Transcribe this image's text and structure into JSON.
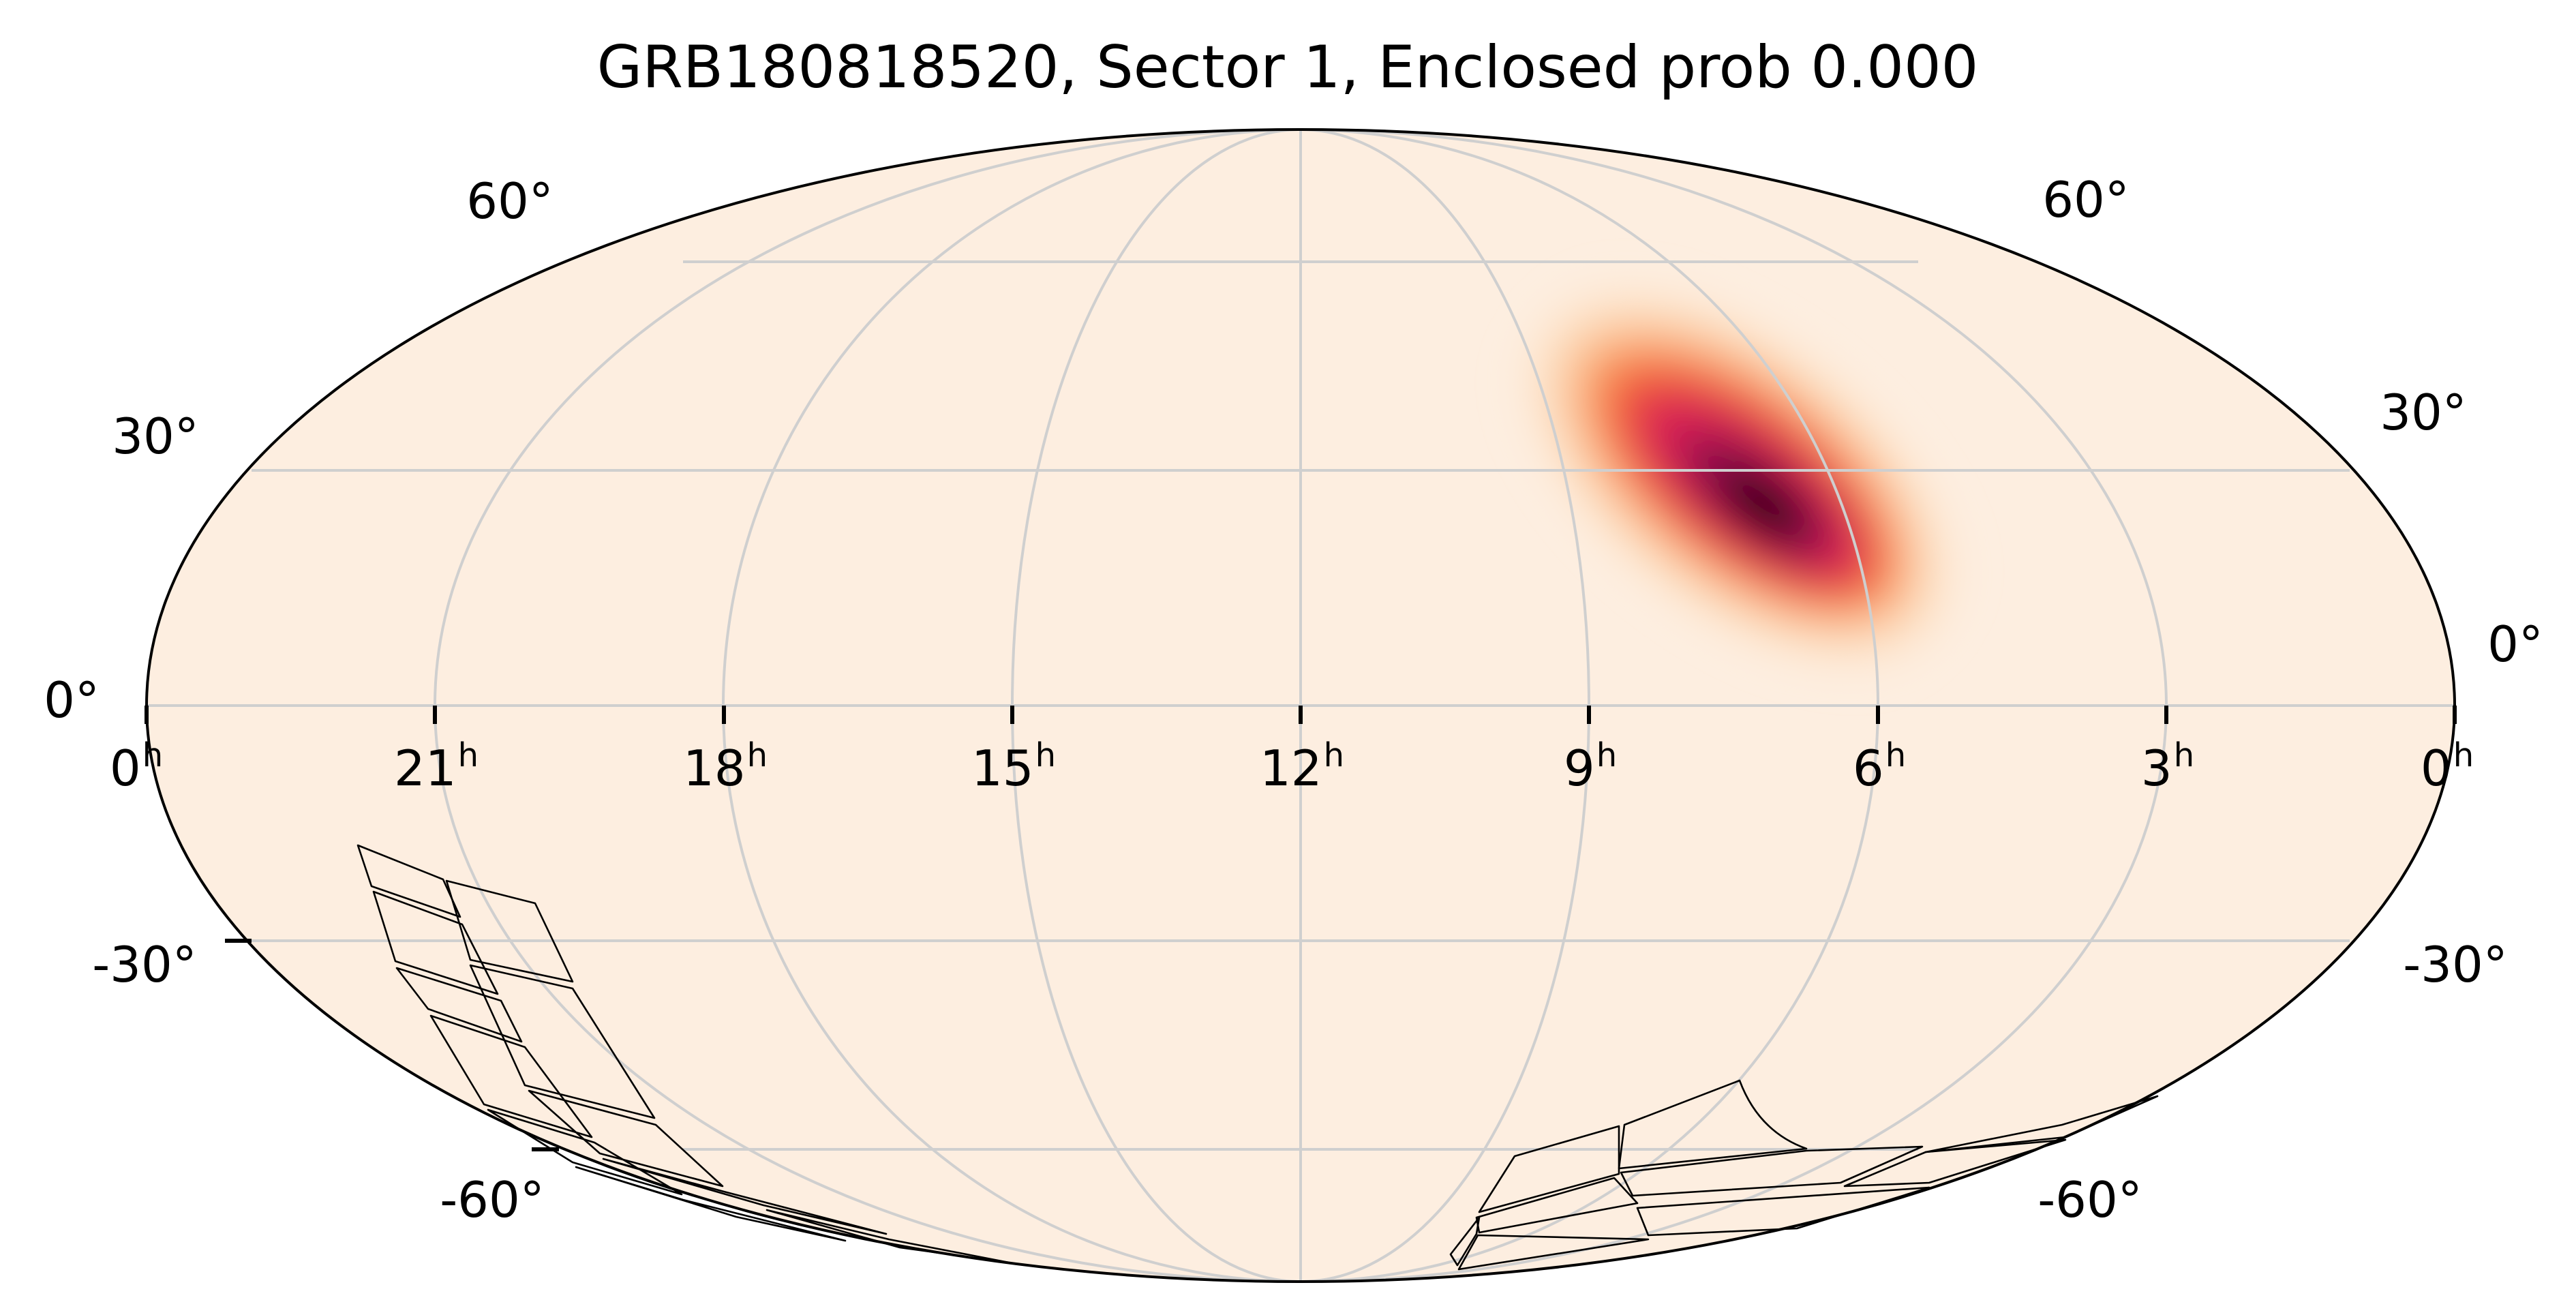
{
  "title": "GRB180818520, Sector 1, Enclosed prob 0.000",
  "colors": {
    "background": "#fdeee0",
    "grid": "#cfcfcf",
    "outline": "#000000",
    "tile_outline": "#000000",
    "heat_ramp": [
      "#fdeee0",
      "#fcc595",
      "#f88a4d",
      "#ef4a3c",
      "#d51f57",
      "#8a0a4a",
      "#1c0006"
    ]
  },
  "map": {
    "projection": "mollweide",
    "ra_tick_labels": [
      {
        "ra_hours": 24,
        "base": "0",
        "sup": "h"
      },
      {
        "ra_hours": 21,
        "base": "21",
        "sup": "h"
      },
      {
        "ra_hours": 18,
        "base": "18",
        "sup": "h"
      },
      {
        "ra_hours": 15,
        "base": "15",
        "sup": "h"
      },
      {
        "ra_hours": 12,
        "base": "12",
        "sup": "h"
      },
      {
        "ra_hours": 9,
        "base": "9",
        "sup": "h"
      },
      {
        "ra_hours": 6,
        "base": "6",
        "sup": "h"
      },
      {
        "ra_hours": 3,
        "base": "3",
        "sup": "h"
      },
      {
        "ra_hours": 0,
        "base": "0",
        "sup": "h"
      }
    ],
    "dec_tick_labels_left": [
      {
        "dec": 60,
        "text": "60°"
      },
      {
        "dec": 30,
        "text": "30°"
      },
      {
        "dec": 0,
        "text": "0°"
      },
      {
        "dec": -30,
        "text": "-30°"
      },
      {
        "dec": -60,
        "text": "-60°"
      }
    ],
    "dec_tick_labels_right": [
      {
        "dec": 60,
        "text": "60°"
      },
      {
        "dec": 30,
        "text": "30°"
      },
      {
        "dec": 0,
        "text": "0°"
      },
      {
        "dec": -30,
        "text": "-30°"
      },
      {
        "dec": -60,
        "text": "-60°"
      }
    ],
    "probability_peak": {
      "ra_hours": 7.2,
      "dec": 28
    },
    "observed_sector": 1
  }
}
